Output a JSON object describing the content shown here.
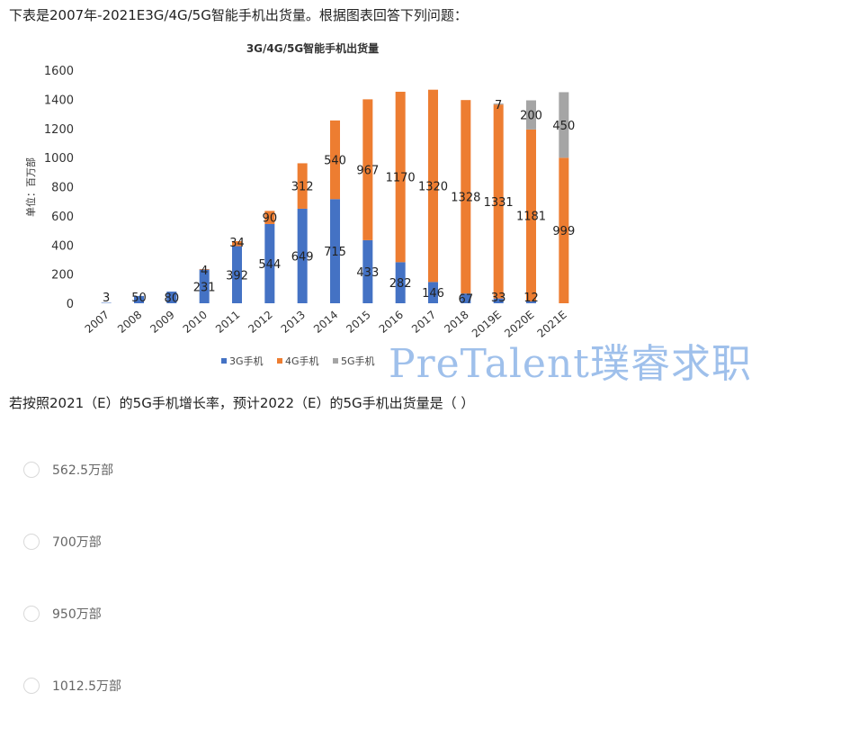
{
  "intro_text": "下表是2007年-2021E3G/4G/5G智能手机出货量。根据图表回答下列问题：",
  "question_text": "若按照2021（E）的5G手机增长率，预计2022（E）的5G手机出货量是（ ）",
  "watermark": "PreTalent璞睿求职",
  "options": [
    {
      "label": "562.5万部"
    },
    {
      "label": "700万部"
    },
    {
      "label": "950万部"
    },
    {
      "label": "1012.5万部"
    }
  ],
  "colors": {
    "3g": "#4472c4",
    "4g": "#ed7d31",
    "5g": "#a5a5a5"
  },
  "chart_data": {
    "type": "bar",
    "stacked": true,
    "title": "3G/4G/5G智能手机出货量",
    "ylabel": "单位：百万部",
    "ylim": [
      0,
      1600
    ],
    "yticks": [
      0,
      200,
      400,
      600,
      800,
      1000,
      1200,
      1400,
      1600
    ],
    "grid": false,
    "legend_position": "bottom",
    "categories": [
      "2007",
      "2008",
      "2009",
      "2010",
      "2011",
      "2012",
      "2013",
      "2014",
      "2015",
      "2016",
      "2017",
      "2018",
      "2019E",
      "2020E",
      "2021E"
    ],
    "series": [
      {
        "name": "3G手机",
        "values": [
          3,
          50,
          80,
          231,
          392,
          544,
          649,
          715,
          433,
          282,
          146,
          67,
          33,
          12,
          null
        ]
      },
      {
        "name": "4G手机",
        "values": [
          null,
          null,
          null,
          4,
          34,
          90,
          312,
          540,
          967,
          1170,
          1320,
          1328,
          1331,
          1181,
          999
        ]
      },
      {
        "name": "5G手机",
        "values": [
          null,
          null,
          null,
          null,
          null,
          null,
          null,
          null,
          null,
          null,
          null,
          null,
          7,
          200,
          450
        ]
      }
    ]
  }
}
